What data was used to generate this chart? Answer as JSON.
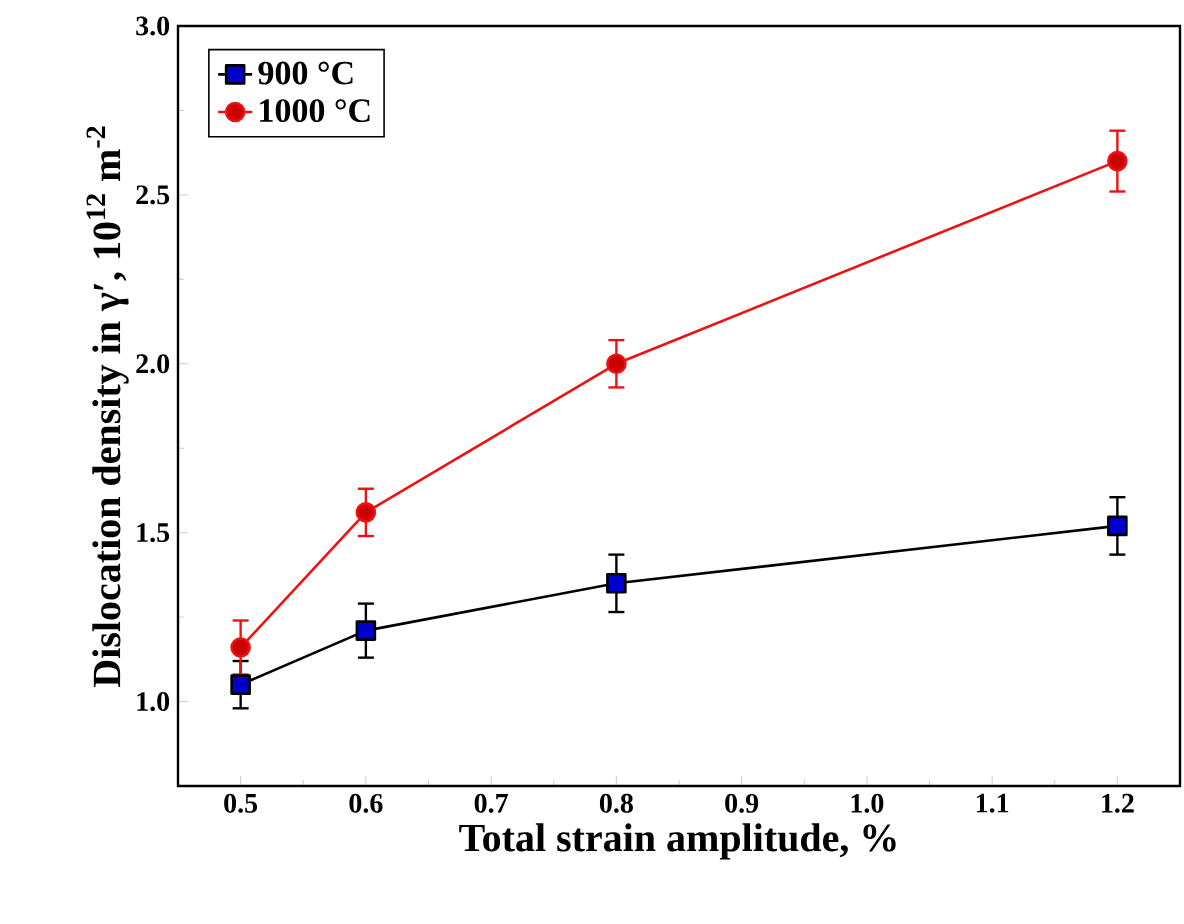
{
  "chart_data": {
    "type": "line",
    "xlabel": "Total strain amplitude, %",
    "ylabel": "Dislocation density in γ′, 10$^{12}$ m$^{-2}$",
    "x": [
      0.5,
      0.6,
      0.8,
      1.2
    ],
    "series": [
      {
        "name": "900 °C",
        "color": "#000000",
        "marker": "square",
        "values": [
          1.05,
          1.21,
          1.35,
          1.52
        ],
        "errors": [
          0.07,
          0.08,
          0.085,
          0.085
        ]
      },
      {
        "name": "1000 °C",
        "color": "#ee1111",
        "marker": "circle",
        "values": [
          1.16,
          1.56,
          2.0,
          2.6
        ],
        "errors": [
          0.08,
          0.07,
          0.07,
          0.09
        ]
      }
    ],
    "xlim": [
      0.45,
      1.25
    ],
    "xticks": [
      0.5,
      0.6,
      0.7,
      0.8,
      0.9,
      {
        "value": 1,
        "label": "1.0"
      },
      1.1,
      1.2
    ],
    "ylim": [
      0.75,
      3.0
    ],
    "yticks": [
      {
        "value": 1,
        "label": "1.0"
      },
      1.5,
      {
        "value": 2,
        "label": "2.0"
      },
      2.5,
      {
        "value": 3,
        "label": "3.0"
      }
    ],
    "legend": "top left"
  }
}
